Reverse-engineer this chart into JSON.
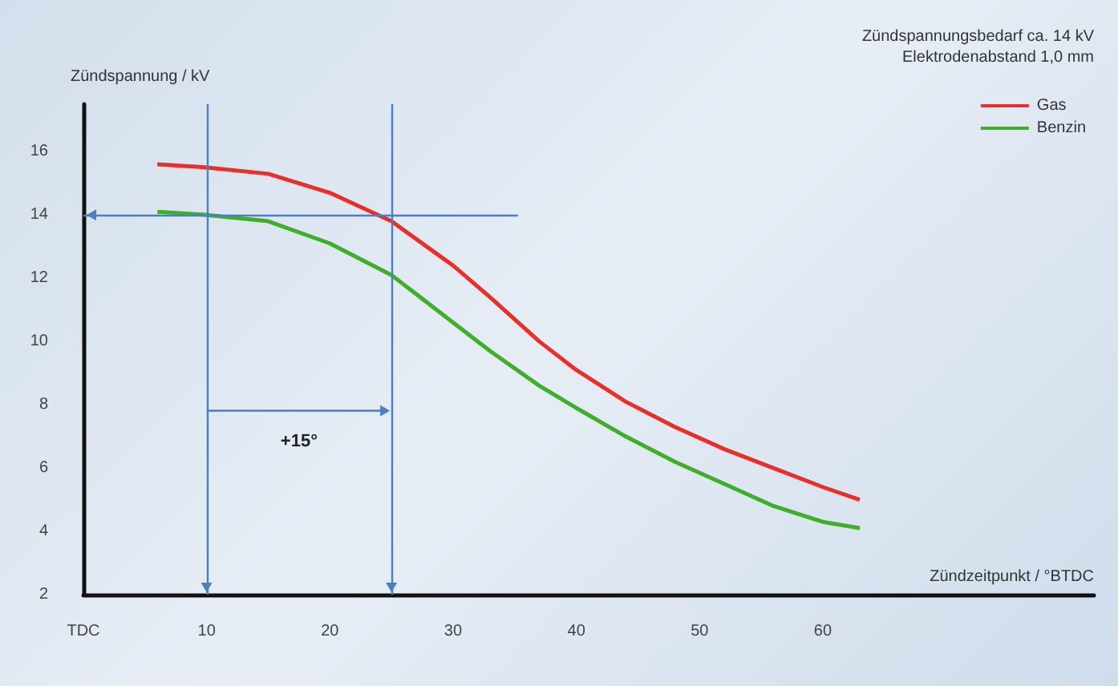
{
  "chart_data": {
    "type": "line",
    "xlabel": "Zündzeitpunkt / °BTDC",
    "ylabel": "Zündspannung / kV",
    "xlim": [
      0,
      82
    ],
    "xticks": [
      {
        "value": 0,
        "label": "TDC"
      },
      10,
      20,
      30,
      40,
      50,
      60
    ],
    "ylim": [
      2,
      17.5
    ],
    "yticks": [
      2,
      4,
      6,
      8,
      10,
      12,
      14,
      16
    ],
    "series": [
      {
        "name": "Gas",
        "color": "#e8302a",
        "x": [
          6,
          10,
          15,
          20,
          25,
          30,
          33,
          37,
          40,
          44,
          48,
          52,
          56,
          60,
          63
        ],
        "values": [
          15.6,
          15.5,
          15.3,
          14.7,
          13.8,
          12.4,
          11.4,
          10.0,
          9.1,
          8.1,
          7.3,
          6.6,
          6.0,
          5.4,
          5.0
        ]
      },
      {
        "name": "Benzin",
        "color": "#3fae2a",
        "x": [
          6,
          10,
          15,
          20,
          25,
          30,
          33,
          37,
          40,
          44,
          48,
          52,
          56,
          60,
          63
        ],
        "values": [
          14.1,
          14.0,
          13.8,
          13.1,
          12.1,
          10.6,
          9.7,
          8.6,
          7.9,
          7.0,
          6.2,
          5.5,
          4.8,
          4.3,
          4.1
        ]
      }
    ],
    "ref_lines": [
      {
        "axis": "x",
        "value": 10,
        "color": "#4a7fc1"
      },
      {
        "axis": "x",
        "value": 25,
        "color": "#4a7fc1"
      },
      {
        "axis": "y",
        "value": 14,
        "color": "#4a7fc1"
      }
    ],
    "annotations": [
      "Zündspannungsbedarf ca. 14 kV",
      "Elektrodenabstand 1,0 mm",
      "+15°"
    ],
    "legend": "top right",
    "grid": false,
    "marker": "none",
    "line_style": "solid"
  }
}
